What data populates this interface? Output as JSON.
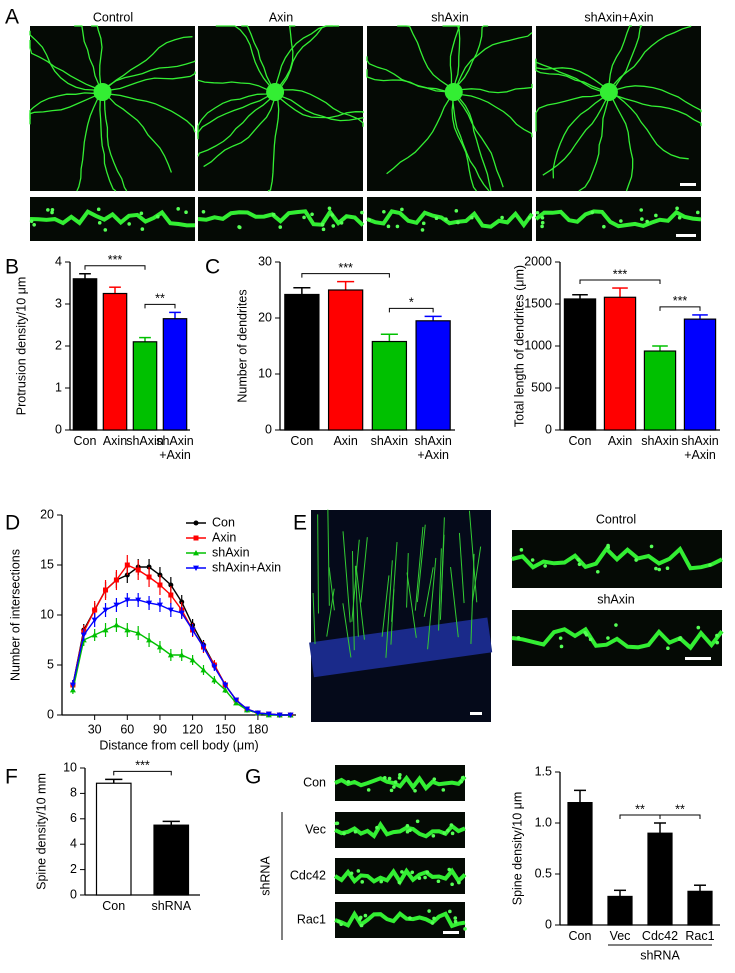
{
  "panel_labels": [
    "A",
    "B",
    "C",
    "D",
    "E",
    "F",
    "G"
  ],
  "panel_a": {
    "titles": [
      "Control",
      "Axin",
      "shAxin",
      "shAxin+Axin"
    ]
  },
  "panel_e": {
    "titles": [
      "Control",
      "shAxin"
    ]
  },
  "panel_g": {
    "rows": [
      "Con",
      "Vec",
      "Cdc42",
      "Rac1"
    ],
    "group": "shRNA"
  },
  "chart_data": [
    {
      "type": "bar",
      "ylabel": "Protrusion density/10 μm",
      "categories": [
        "Con",
        "Axin",
        "shAxin",
        "shAxin\n+Axin"
      ],
      "values": [
        3.6,
        3.25,
        2.1,
        2.65
      ],
      "errors": [
        0.12,
        0.15,
        0.1,
        0.15
      ],
      "colors": [
        "#000000",
        "#ff0000",
        "#00c000",
        "#0000ff"
      ],
      "ylim": [
        0,
        4
      ],
      "yticks": [
        0,
        1,
        2,
        3,
        4
      ],
      "significance": [
        {
          "from": 0,
          "to": 2,
          "label": "***"
        },
        {
          "from": 2,
          "to": 3,
          "label": "**"
        }
      ]
    },
    {
      "type": "bar",
      "ylabel": "Number of dendrites",
      "categories": [
        "Con",
        "Axin",
        "shAxin",
        "shAxin\n+Axin"
      ],
      "values": [
        24.2,
        25,
        15.8,
        19.5
      ],
      "errors": [
        1.2,
        1.5,
        1.3,
        0.8
      ],
      "colors": [
        "#000000",
        "#ff0000",
        "#00c000",
        "#0000ff"
      ],
      "ylim": [
        0,
        30
      ],
      "yticks": [
        0,
        10,
        20,
        30
      ],
      "significance": [
        {
          "from": 0,
          "to": 2,
          "label": "***"
        },
        {
          "from": 2,
          "to": 3,
          "label": "*"
        }
      ]
    },
    {
      "type": "bar",
      "ylabel": "Total length of dendrites (μm)",
      "categories": [
        "Con",
        "Axin",
        "shAxin",
        "shAxin\n+Axin"
      ],
      "values": [
        1560,
        1580,
        940,
        1320
      ],
      "errors": [
        50,
        110,
        60,
        50
      ],
      "colors": [
        "#000000",
        "#ff0000",
        "#00c000",
        "#0000ff"
      ],
      "ylim": [
        0,
        2000
      ],
      "yticks": [
        0,
        500,
        1000,
        1500,
        2000
      ],
      "significance": [
        {
          "from": 0,
          "to": 2,
          "label": "***"
        },
        {
          "from": 2,
          "to": 3,
          "label": "***"
        }
      ]
    },
    {
      "type": "line",
      "xlabel": "Distance from cell body (μm)",
      "ylabel": "Number of intersections",
      "x": [
        10,
        20,
        30,
        40,
        50,
        60,
        70,
        80,
        90,
        100,
        110,
        120,
        130,
        140,
        150,
        160,
        170,
        180,
        190,
        200,
        210
      ],
      "xlim": [
        0,
        215
      ],
      "xticks": [
        30,
        60,
        90,
        120,
        150,
        180
      ],
      "ylim": [
        0,
        20
      ],
      "yticks": [
        0,
        5,
        10,
        15,
        20
      ],
      "legend": "upper right",
      "series": [
        {
          "name": "Con",
          "color": "#000000",
          "marker": "circle",
          "values": [
            3,
            8.5,
            10.5,
            12.5,
            13.5,
            14,
            14.8,
            14.8,
            14,
            13,
            11.3,
            9,
            7,
            5,
            3,
            1.5,
            0.5,
            0.2,
            0.1,
            0,
            0
          ],
          "errors": [
            0.5,
            0.6,
            0.7,
            0.8,
            0.8,
            0.8,
            0.8,
            0.8,
            0.8,
            0.8,
            0.7,
            0.6,
            0.5,
            0.4,
            0.3,
            0.2,
            0.1,
            0.1,
            0.1,
            0,
            0
          ]
        },
        {
          "name": "Axin",
          "color": "#ff0000",
          "marker": "square",
          "values": [
            3,
            8.3,
            10.5,
            12.5,
            13.5,
            15,
            14.5,
            13.8,
            13,
            12,
            10.5,
            8.5,
            6.8,
            5,
            3,
            1.5,
            0.6,
            0.2,
            0.1,
            0,
            0
          ],
          "errors": [
            0.5,
            0.7,
            0.9,
            1,
            1,
            1,
            1,
            1,
            1,
            0.9,
            0.8,
            0.7,
            0.6,
            0.5,
            0.4,
            0.2,
            0.1,
            0.1,
            0.1,
            0,
            0
          ]
        },
        {
          "name": "shAxin",
          "color": "#00c000",
          "marker": "triangle-up",
          "values": [
            2.5,
            7.5,
            8,
            8.5,
            9,
            8.5,
            8.2,
            7.5,
            6.8,
            6,
            6,
            5.5,
            4.5,
            3.5,
            2.5,
            1.2,
            0.5,
            0.2,
            0,
            0,
            0
          ],
          "errors": [
            0.4,
            0.6,
            0.6,
            0.7,
            0.7,
            0.7,
            0.7,
            0.7,
            0.6,
            0.6,
            0.6,
            0.5,
            0.5,
            0.4,
            0.3,
            0.2,
            0.1,
            0.1,
            0,
            0,
            0
          ]
        },
        {
          "name": "shAxin+Axin",
          "color": "#0000ff",
          "marker": "triangle-down",
          "values": [
            3,
            8,
            9.5,
            10.5,
            11,
            11.5,
            11.5,
            11.2,
            11,
            10.5,
            10.2,
            8.5,
            6.8,
            4.8,
            3,
            1.5,
            0.6,
            0.2,
            0.1,
            0,
            0
          ],
          "errors": [
            0.5,
            0.6,
            0.7,
            0.7,
            0.7,
            0.7,
            0.7,
            0.7,
            0.7,
            0.7,
            0.6,
            0.6,
            0.5,
            0.4,
            0.3,
            0.2,
            0.1,
            0.1,
            0.1,
            0,
            0
          ]
        }
      ]
    },
    {
      "type": "bar",
      "ylabel": "Spine density/10 mm",
      "categories": [
        "Con",
        "shRNA"
      ],
      "values": [
        8.8,
        5.5
      ],
      "errors": [
        0.3,
        0.3
      ],
      "colors": [
        "#ffffff",
        "#000000"
      ],
      "ylim": [
        0,
        10
      ],
      "yticks": [
        0,
        2,
        4,
        6,
        8,
        10
      ],
      "significance": [
        {
          "from": 0,
          "to": 1,
          "label": "***"
        }
      ]
    },
    {
      "type": "bar",
      "ylabel": "Spine density/10 μm",
      "categories": [
        "Con",
        "Vec",
        "Cdc42",
        "Rac1"
      ],
      "values": [
        1.2,
        0.28,
        0.9,
        0.33
      ],
      "errors": [
        0.12,
        0.06,
        0.1,
        0.06
      ],
      "colors": [
        "#000000",
        "#000000",
        "#000000",
        "#000000"
      ],
      "ylim": [
        0,
        1.5
      ],
      "yticks": [
        0,
        0.5,
        {
          "value": 1,
          "label": "1.0"
        },
        1.5
      ],
      "significance": [
        {
          "from": 1,
          "to": 2,
          "label": "**"
        },
        {
          "from": 2,
          "to": 3,
          "label": "**"
        }
      ],
      "group": {
        "label": "shRNA",
        "from": 1,
        "to": 3
      }
    }
  ]
}
